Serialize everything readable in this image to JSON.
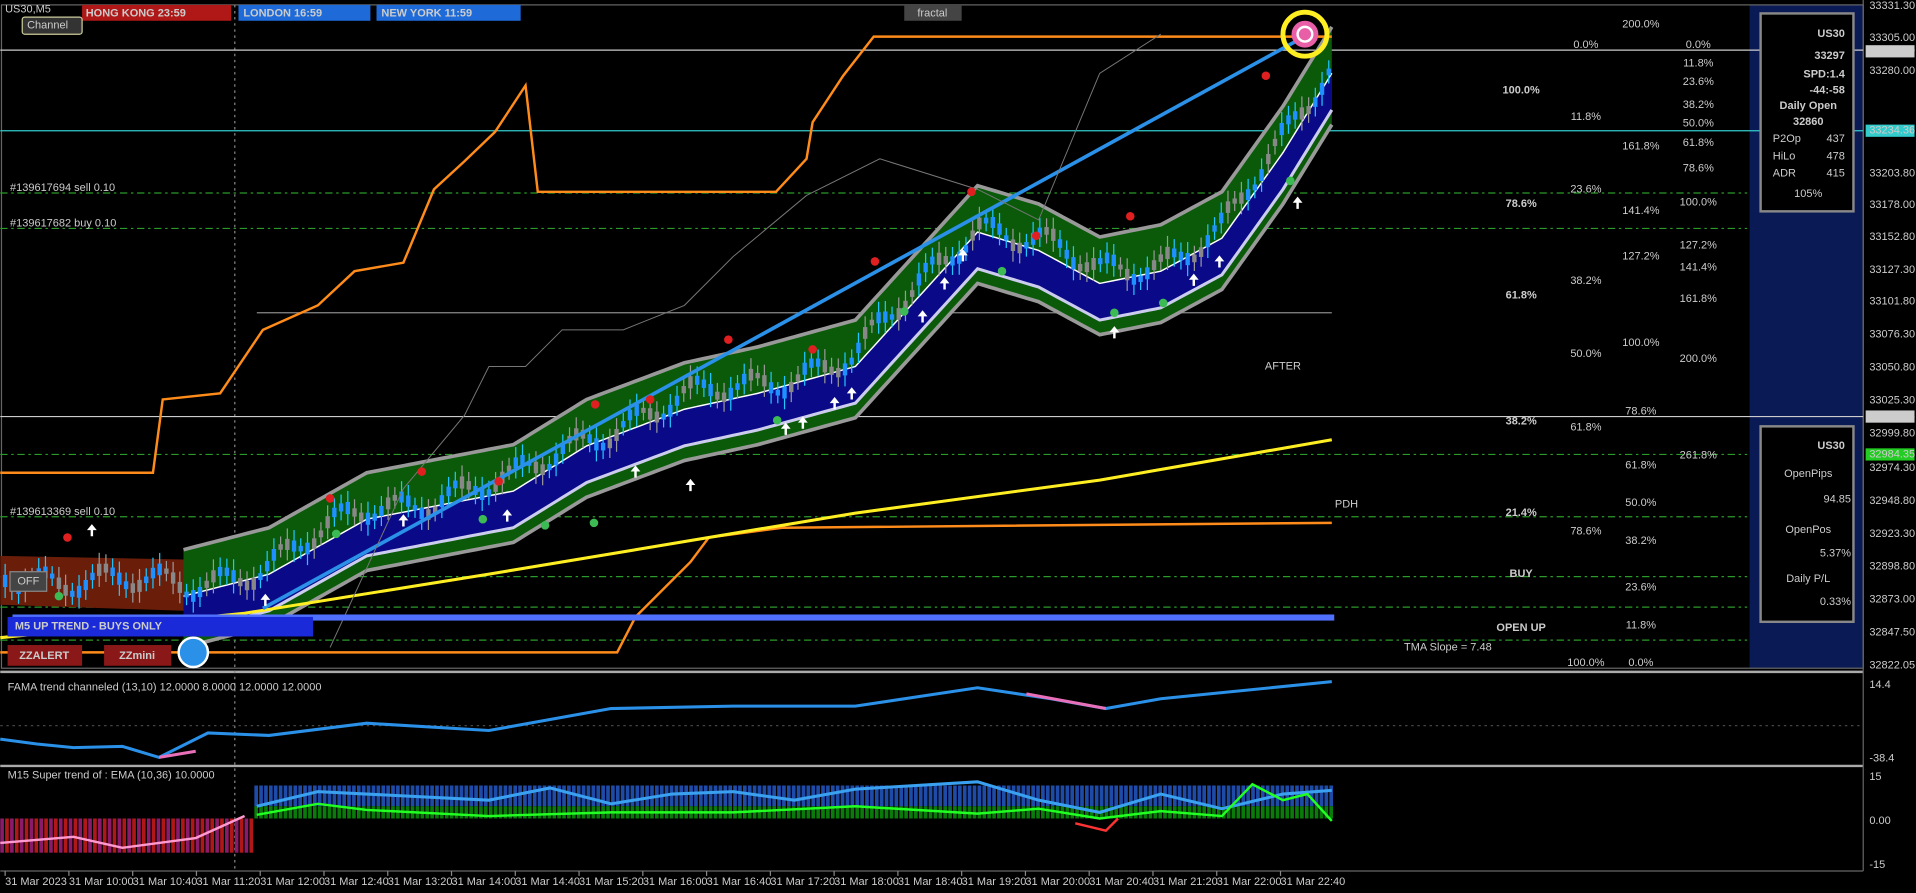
{
  "header": {
    "symbol": "US30,M5",
    "channel_button": "Channel",
    "clocks": [
      "HONG KONG 23:59",
      "LONDON  16:59",
      "NEW YORK  11:59"
    ],
    "fractal": "fractal"
  },
  "price_axis": [
    "33331.30",
    "33305.00",
    "33297.30",
    "33280.00",
    "33234.36",
    "33203.80",
    "33178.00",
    "33152.80",
    "33127.30",
    "33101.80",
    "33076.30",
    "33050.80",
    "33025.30",
    "33014.26",
    "32999.80",
    "32984.35",
    "32974.30",
    "32948.80",
    "32923.30",
    "32898.80",
    "32873.00",
    "32847.50",
    "32822.05"
  ],
  "fib_white": [
    "0.0%",
    "11.8%",
    "23.6%",
    "38.2%",
    "50.0%",
    "61.8%",
    "78.6%",
    "100.0%"
  ],
  "fib_blue": [
    "100.0%",
    "78.6%",
    "61.8%",
    "38.2%",
    "21.4%"
  ],
  "signals": {
    "buy": "BUY",
    "open": "OPEN UP"
  },
  "fib_green": [
    "200.0%",
    "161.8%",
    "141.4%",
    "127.2%",
    "100.0%",
    "78.6%",
    "61.8%",
    "50.0%",
    "38.2%",
    "23.6%",
    "11.8%",
    "0.0%"
  ],
  "fib_cyan": [
    "0.0%",
    "11.8%",
    "23.6%",
    "38.2%",
    "50.0%",
    "61.8%",
    "78.6%",
    "100.0%",
    "127.2%",
    "141.4%",
    "161.8%",
    "200.0%",
    "261.8%"
  ],
  "annotations": {
    "after": "AFTER",
    "tma": "TMA Slope = 7.48",
    "pdh": "PDH",
    "trend": "M5 UP TREND - BUYS ONLY",
    "zzalert": "ZZALERT",
    "zzmini": "ZZmini",
    "off": "OFF",
    "orders": [
      "#139617694 sell 0.10",
      "#139617682 buy 0.10",
      "#139613369 sell 0.10"
    ]
  },
  "info_panel": {
    "symbol": "US30",
    "price": "33297",
    "spread": "SPD:1.4",
    "countdown": "-44:-58",
    "daily_open_label": "Daily Open",
    "daily_open": "32860",
    "rows": [
      [
        "P2Op",
        "437"
      ],
      [
        "HiLo",
        "478"
      ],
      [
        "ADR",
        "415"
      ]
    ],
    "percent": "105%"
  },
  "pnl_panel": {
    "symbol": "US30",
    "open_pips_label": "OpenPips",
    "open_pips": "94.85",
    "open_pos_label": "OpenPos",
    "open_pos": "5.37%",
    "daily_label": "Daily P/L",
    "daily": "0.33%"
  },
  "indicators": [
    {
      "label": "FAMA trend channeled (13,10) 12.0000 8.0000 12.0000 12.0000",
      "axis": [
        "14.4",
        "-38.4"
      ]
    },
    {
      "label": "M15  Super trend of : EMA (10,36)  10.0000",
      "axis": [
        "15",
        "0.00",
        "-15"
      ]
    }
  ],
  "time_axis": [
    "31 Mar 2023",
    "31 Mar 10:00",
    "31 Mar 10:40",
    "31 Mar 11:20",
    "31 Mar 12:00",
    "31 Mar 12:40",
    "31 Mar 13:20",
    "31 Mar 14:00",
    "31 Mar 14:40",
    "31 Mar 15:20",
    "31 Mar 16:00",
    "31 Mar 16:40",
    "31 Mar 17:20",
    "31 Mar 18:00",
    "31 Mar 18:40",
    "31 Mar 19:20",
    "31 Mar 20:00",
    "31 Mar 20:40",
    "31 Mar 21:20",
    "31 Mar 22:00",
    "31 Mar 22:40"
  ]
}
